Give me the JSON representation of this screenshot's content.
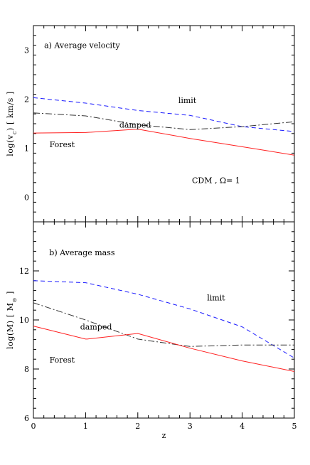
{
  "chart_data": [
    {
      "type": "line",
      "panel_label": "a)  Average velocity",
      "xlabel": "",
      "ylabel": "log(v_c) [ km/s ]",
      "ylabel_parts": {
        "pre": "log(v",
        "sub": "c",
        "post": ") [ km/s ]"
      },
      "xlim": [
        0,
        5
      ],
      "ylim": [
        -0.5,
        3.5
      ],
      "yticks": [
        0,
        1,
        2,
        3
      ],
      "annotations": [
        {
          "text": "limit",
          "x": 2.95,
          "y": 1.98
        },
        {
          "text": "damped",
          "x": 1.95,
          "y": 1.48
        },
        {
          "text": "Forest",
          "x": 0.55,
          "y": 1.08
        },
        {
          "text": "CDM , Ω= 1",
          "x": 3.5,
          "y": 0.35
        }
      ],
      "series": [
        {
          "key": "limit",
          "color": "#1a1aff",
          "dash": "6,4",
          "x": [
            0,
            1,
            2,
            3,
            4,
            5
          ],
          "y": [
            2.03,
            1.92,
            1.77,
            1.67,
            1.44,
            1.34
          ]
        },
        {
          "key": "damped",
          "color": "#333333",
          "dash": "9,3,2,3",
          "x": [
            0,
            1,
            2,
            3,
            4,
            5
          ],
          "y": [
            1.72,
            1.66,
            1.48,
            1.38,
            1.44,
            1.54
          ]
        },
        {
          "key": "forest",
          "color": "#ff2020",
          "dash": "",
          "x": [
            0,
            1,
            2,
            3,
            4,
            5
          ],
          "y": [
            1.31,
            1.32,
            1.39,
            1.2,
            1.03,
            0.86
          ]
        }
      ]
    },
    {
      "type": "line",
      "panel_label": "b)  Average mass",
      "xlabel": "z",
      "ylabel": "log(M) [ M_⊙ ]",
      "ylabel_parts": {
        "pre": "log(M) [ M",
        "sub": "⊙",
        "post": " ]"
      },
      "xlim": [
        0,
        5
      ],
      "ylim": [
        6,
        14
      ],
      "xticks": [
        0,
        1,
        2,
        3,
        4,
        5
      ],
      "yticks": [
        6,
        8,
        10,
        12
      ],
      "annotations": [
        {
          "text": "limit",
          "x": 3.5,
          "y": 10.92
        },
        {
          "text": "damped",
          "x": 1.2,
          "y": 9.72
        },
        {
          "text": "Forest",
          "x": 0.55,
          "y": 8.38
        }
      ],
      "series": [
        {
          "key": "limit",
          "color": "#1a1aff",
          "dash": "6,4",
          "x": [
            0,
            1,
            2,
            3,
            4,
            5
          ],
          "y": [
            11.6,
            11.52,
            11.05,
            10.45,
            9.72,
            8.45
          ]
        },
        {
          "key": "damped",
          "color": "#333333",
          "dash": "9,3,2,3",
          "x": [
            0,
            1,
            2,
            3,
            4,
            5
          ],
          "y": [
            10.7,
            10.0,
            9.22,
            8.92,
            8.98,
            8.98
          ]
        },
        {
          "key": "forest",
          "color": "#ff2020",
          "dash": "",
          "x": [
            0,
            1,
            1.03,
            2,
            3,
            4,
            5
          ],
          "y": [
            9.75,
            9.22,
            9.22,
            9.45,
            8.85,
            8.33,
            7.9
          ]
        }
      ]
    }
  ]
}
